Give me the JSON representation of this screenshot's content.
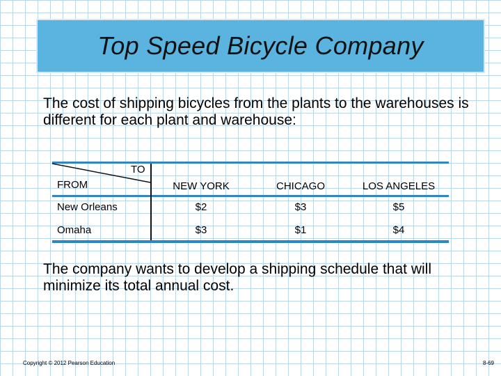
{
  "title": "Top Speed Bicycle Company",
  "intro": "The cost of shipping bicycles from the plants to the warehouses is different for each plant and warehouse:",
  "table": {
    "to_label": "TO",
    "from_label": "FROM",
    "columns": [
      "NEW YORK",
      "CHICAGO",
      "LOS ANGELES"
    ],
    "rows": [
      {
        "plant": "New Orleans",
        "costs": [
          "$2",
          "$3",
          "$5"
        ]
      },
      {
        "plant": "Omaha",
        "costs": [
          "$3",
          "$1",
          "$4"
        ]
      }
    ],
    "band_color": "#2f86c3"
  },
  "conclusion": "The company wants to develop a shipping schedule that will minimize its total annual cost.",
  "footer": {
    "copyright": "Copyright © 2012 Pearson Education",
    "page": "8-69"
  },
  "colors": {
    "title_bg": "#5bb3df",
    "grid": "#b9d6ea"
  }
}
